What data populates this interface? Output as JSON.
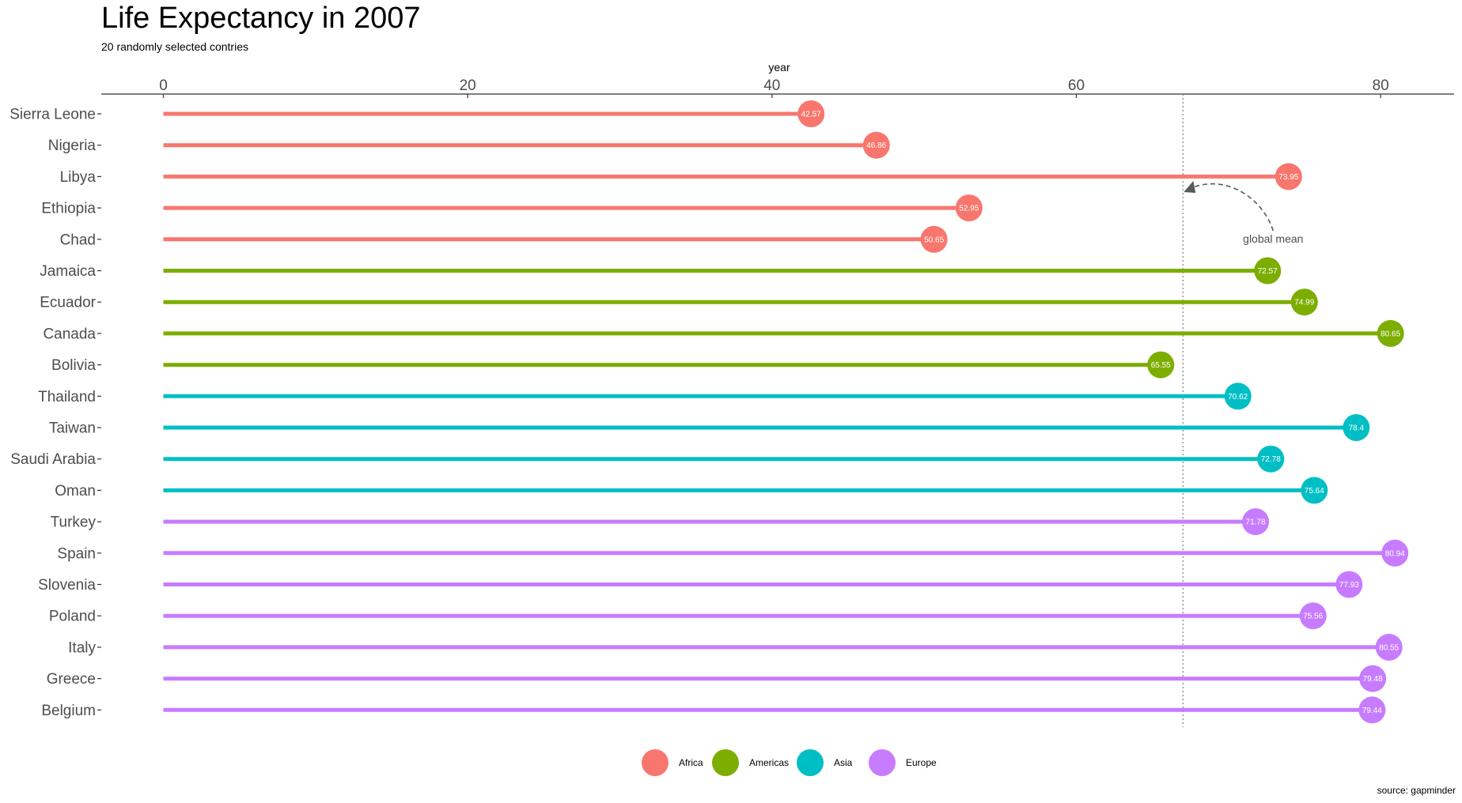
{
  "chart_data": {
    "type": "lollipop",
    "title": "Life Expectancy in 2007",
    "subtitle": "20 randomly selected contries",
    "xlabel": "year",
    "ylabel": "",
    "caption": "source: gapminder",
    "xlim": [
      -4,
      85
    ],
    "x_ticks": [
      "0",
      "20",
      "40",
      "60",
      "80"
    ],
    "x_tick_values": [
      0,
      20,
      40,
      60,
      80
    ],
    "x_axis_position": "top",
    "grid": false,
    "legend_position": "bottom",
    "global_mean": 67.01,
    "annotation": "global mean",
    "colors": {
      "Africa": "#F8766D",
      "Americas": "#7CAE00",
      "Asia": "#00BFC4",
      "Europe": "#C77CFF"
    },
    "legend": [
      "Africa",
      "Americas",
      "Asia",
      "Europe"
    ],
    "points": [
      {
        "country": "Sierra Leone",
        "continent": "Africa",
        "value": 42.57,
        "label": "42.57"
      },
      {
        "country": "Nigeria",
        "continent": "Africa",
        "value": 46.86,
        "label": "46.86"
      },
      {
        "country": "Libya",
        "continent": "Africa",
        "value": 73.95,
        "label": "73.95"
      },
      {
        "country": "Ethiopia",
        "continent": "Africa",
        "value": 52.95,
        "label": "52.95"
      },
      {
        "country": "Chad",
        "continent": "Africa",
        "value": 50.65,
        "label": "50.65"
      },
      {
        "country": "Jamaica",
        "continent": "Americas",
        "value": 72.57,
        "label": "72.57"
      },
      {
        "country": "Ecuador",
        "continent": "Americas",
        "value": 74.99,
        "label": "74.99"
      },
      {
        "country": "Canada",
        "continent": "Americas",
        "value": 80.65,
        "label": "80.65"
      },
      {
        "country": "Bolivia",
        "continent": "Americas",
        "value": 65.55,
        "label": "65.55"
      },
      {
        "country": "Thailand",
        "continent": "Asia",
        "value": 70.62,
        "label": "70.62"
      },
      {
        "country": "Taiwan",
        "continent": "Asia",
        "value": 78.4,
        "label": "78.4"
      },
      {
        "country": "Saudi Arabia",
        "continent": "Asia",
        "value": 72.78,
        "label": "72.78"
      },
      {
        "country": "Oman",
        "continent": "Asia",
        "value": 75.64,
        "label": "75.64"
      },
      {
        "country": "Turkey",
        "continent": "Europe",
        "value": 71.78,
        "label": "71.78"
      },
      {
        "country": "Spain",
        "continent": "Europe",
        "value": 80.94,
        "label": "80.94"
      },
      {
        "country": "Slovenia",
        "continent": "Europe",
        "value": 77.93,
        "label": "77.93"
      },
      {
        "country": "Poland",
        "continent": "Europe",
        "value": 75.56,
        "label": "75.56"
      },
      {
        "country": "Italy",
        "continent": "Europe",
        "value": 80.55,
        "label": "80.55"
      },
      {
        "country": "Greece",
        "continent": "Europe",
        "value": 79.48,
        "label": "79.48"
      },
      {
        "country": "Belgium",
        "continent": "Europe",
        "value": 79.44,
        "label": "79.44"
      }
    ]
  }
}
